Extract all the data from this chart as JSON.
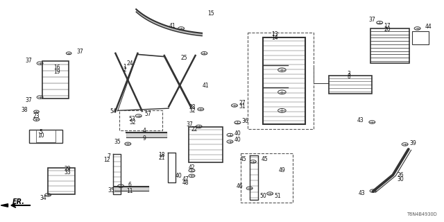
{
  "title": "",
  "background_color": "#ffffff",
  "part_number": "T6N4B4930D",
  "lines_color": "#333333",
  "text_color": "#111111"
}
